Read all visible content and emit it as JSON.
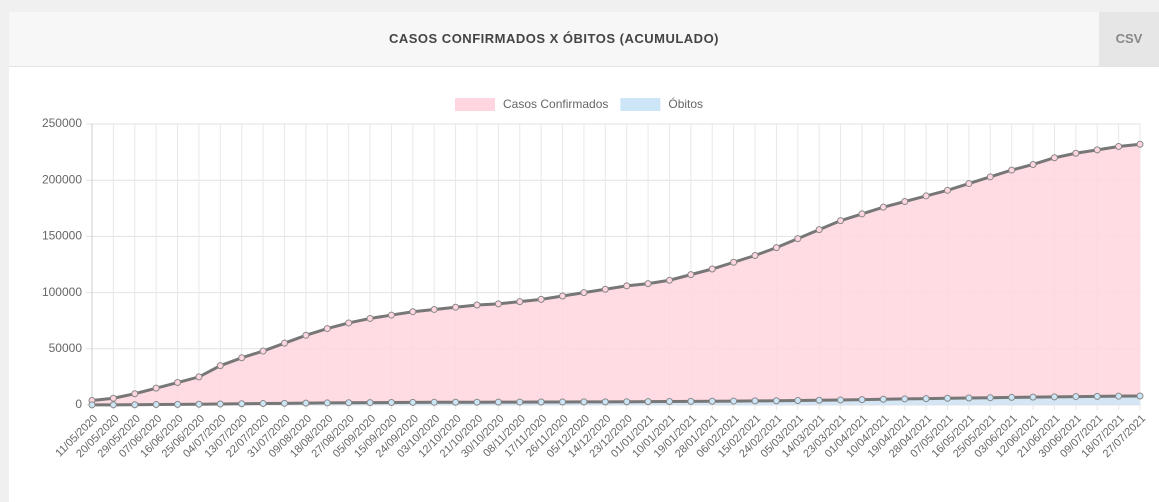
{
  "panel": {
    "title": "CASOS CONFIRMADOS X ÓBITOS (ACUMULADO)",
    "button": "CSV"
  },
  "chart_data": {
    "type": "area",
    "categories": [
      "11/05/2020",
      "20/05/2020",
      "29/05/2020",
      "07/06/2020",
      "16/06/2020",
      "25/06/2020",
      "04/07/2020",
      "13/07/2020",
      "22/07/2020",
      "31/07/2020",
      "09/08/2020",
      "18/08/2020",
      "27/08/2020",
      "05/09/2020",
      "15/09/2020",
      "24/09/2020",
      "03/10/2020",
      "12/10/2020",
      "21/10/2020",
      "30/10/2020",
      "08/11/2020",
      "17/11/2020",
      "26/11/2020",
      "05/12/2020",
      "14/12/2020",
      "23/12/2020",
      "01/01/2021",
      "10/01/2021",
      "19/01/2021",
      "28/01/2021",
      "06/02/2021",
      "15/02/2021",
      "24/02/2021",
      "05/03/2021",
      "14/03/2021",
      "23/03/2021",
      "01/04/2021",
      "10/04/2021",
      "19/04/2021",
      "28/04/2021",
      "07/05/2021",
      "16/05/2021",
      "25/05/2021",
      "03/06/2021",
      "12/06/2021",
      "21/06/2021",
      "30/06/2021",
      "09/07/2021",
      "18/07/2021",
      "27/07/2021"
    ],
    "series": [
      {
        "name": "Casos Confirmados",
        "color": "#ffd6df",
        "values": [
          4000,
          6000,
          10000,
          15000,
          20000,
          25000,
          35000,
          42000,
          48000,
          55000,
          62000,
          68000,
          73000,
          77000,
          80000,
          83000,
          85000,
          87000,
          89000,
          90000,
          92000,
          94000,
          97000,
          100000,
          103000,
          106000,
          108000,
          111000,
          116000,
          121000,
          127000,
          133000,
          140000,
          148000,
          156000,
          164000,
          170000,
          176000,
          181000,
          186000,
          191000,
          197000,
          203000,
          209000,
          214000,
          220000,
          224000,
          227000,
          230000,
          232000
        ]
      },
      {
        "name": "Óbitos",
        "color": "#cde6f7",
        "values": [
          100,
          150,
          250,
          400,
          550,
          700,
          900,
          1100,
          1300,
          1500,
          1700,
          1850,
          2000,
          2100,
          2200,
          2300,
          2400,
          2450,
          2500,
          2550,
          2600,
          2650,
          2700,
          2750,
          2800,
          2900,
          3000,
          3100,
          3200,
          3350,
          3500,
          3650,
          3800,
          4000,
          4250,
          4500,
          4800,
          5100,
          5400,
          5700,
          6000,
          6250,
          6500,
          6750,
          7000,
          7250,
          7500,
          7700,
          7850,
          8000
        ]
      }
    ],
    "ylim": [
      0,
      250000
    ],
    "yticks": [
      0,
      50000,
      100000,
      150000,
      200000,
      250000
    ],
    "grid": true,
    "legend": "top"
  }
}
